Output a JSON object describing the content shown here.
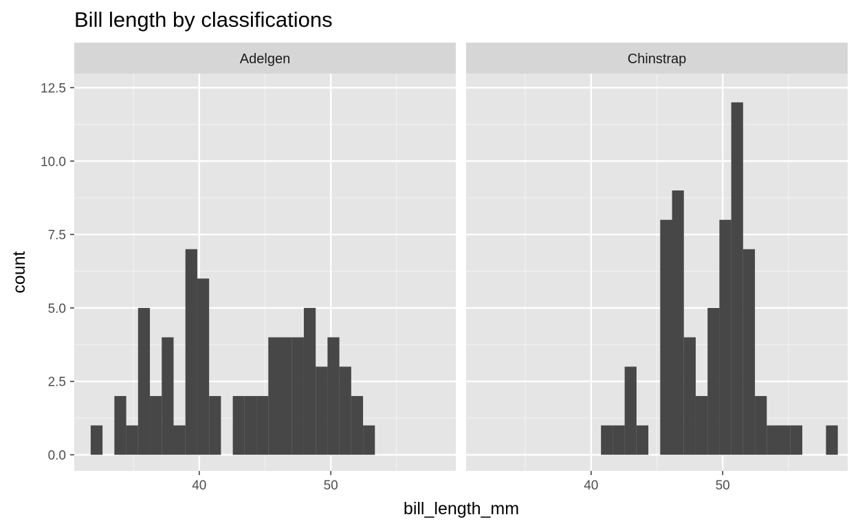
{
  "chart_data": {
    "type": "bar",
    "title": "Bill length by classifications",
    "xlabel": "bill_length_mm",
    "ylabel": "count",
    "xlim": [
      30.5,
      59.5
    ],
    "ylim": [
      -0.55,
      12.98
    ],
    "x_ticks": [
      40,
      50
    ],
    "x_tick_labels": [
      "40",
      "50"
    ],
    "y_ticks": [
      0,
      2.5,
      5,
      7.5,
      10,
      12.5
    ],
    "y_tick_labels": [
      "0.0",
      "2.5",
      "5.0",
      "7.5",
      "10.0",
      "12.5"
    ],
    "bin_width": 0.9,
    "grid": true,
    "bar_color": "#474747",
    "panel_background": "#e5e5e5",
    "strip_background": "#d6d6d6",
    "panels": [
      {
        "name": "Adelgen",
        "bars": [
          {
            "x": 32.2,
            "count": 1
          },
          {
            "x": 33.1,
            "count": 0
          },
          {
            "x": 34.0,
            "count": 2
          },
          {
            "x": 34.9,
            "count": 1
          },
          {
            "x": 35.8,
            "count": 5
          },
          {
            "x": 36.7,
            "count": 2
          },
          {
            "x": 37.6,
            "count": 4
          },
          {
            "x": 38.5,
            "count": 1
          },
          {
            "x": 39.4,
            "count": 7
          },
          {
            "x": 40.3,
            "count": 6
          },
          {
            "x": 41.2,
            "count": 2
          },
          {
            "x": 42.1,
            "count": 0
          },
          {
            "x": 43.0,
            "count": 2
          },
          {
            "x": 43.9,
            "count": 2
          },
          {
            "x": 44.8,
            "count": 2
          },
          {
            "x": 45.7,
            "count": 4
          },
          {
            "x": 46.6,
            "count": 4
          },
          {
            "x": 47.5,
            "count": 4
          },
          {
            "x": 48.4,
            "count": 5
          },
          {
            "x": 49.3,
            "count": 3
          },
          {
            "x": 50.2,
            "count": 4
          },
          {
            "x": 51.1,
            "count": 3
          },
          {
            "x": 52.0,
            "count": 2
          },
          {
            "x": 52.9,
            "count": 1
          }
        ]
      },
      {
        "name": "Chinstrap",
        "bars": [
          {
            "x": 41.2,
            "count": 1
          },
          {
            "x": 42.1,
            "count": 1
          },
          {
            "x": 43.0,
            "count": 3
          },
          {
            "x": 43.9,
            "count": 1
          },
          {
            "x": 44.8,
            "count": 0
          },
          {
            "x": 45.7,
            "count": 8
          },
          {
            "x": 46.6,
            "count": 9
          },
          {
            "x": 47.5,
            "count": 4
          },
          {
            "x": 48.4,
            "count": 2
          },
          {
            "x": 49.3,
            "count": 5
          },
          {
            "x": 50.2,
            "count": 8
          },
          {
            "x": 51.1,
            "count": 12
          },
          {
            "x": 52.0,
            "count": 7
          },
          {
            "x": 52.9,
            "count": 2
          },
          {
            "x": 53.8,
            "count": 1
          },
          {
            "x": 54.7,
            "count": 1
          },
          {
            "x": 55.6,
            "count": 1
          },
          {
            "x": 56.5,
            "count": 0
          },
          {
            "x": 57.4,
            "count": 0
          },
          {
            "x": 58.3,
            "count": 1
          }
        ]
      }
    ]
  }
}
